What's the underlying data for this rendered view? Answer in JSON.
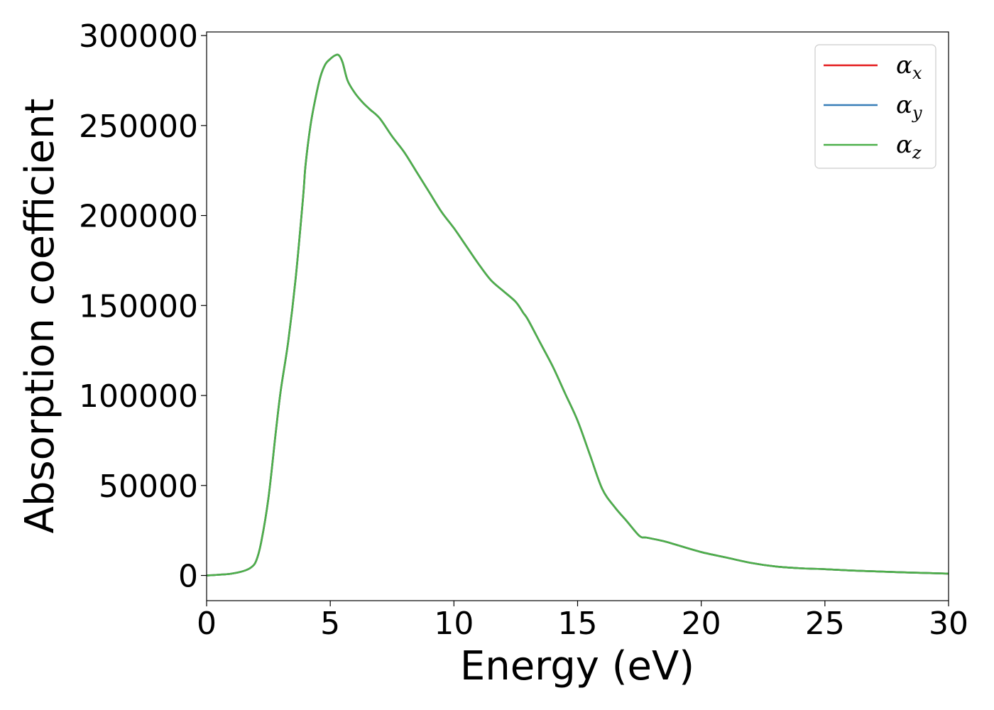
{
  "chart_data": {
    "type": "line",
    "xlabel": "Energy (eV)",
    "ylabel": "Absorption coefficient",
    "xlim": [
      0,
      30
    ],
    "ylim": [
      -14000,
      302000
    ],
    "xticks": [
      0,
      5,
      10,
      15,
      20,
      25,
      30
    ],
    "yticks": [
      0,
      50000,
      100000,
      150000,
      200000,
      250000,
      300000
    ],
    "grid": false,
    "legend_position": "top-right",
    "series": [
      {
        "name": "α_x",
        "color": "#e41a1c",
        "x": [
          0,
          0.5,
          1.0,
          1.5,
          1.8,
          2.0,
          2.2,
          2.5,
          2.8,
          3.0,
          3.3,
          3.6,
          3.9,
          4.0,
          4.2,
          4.4,
          4.6,
          4.8,
          5.0,
          5.2,
          5.35,
          5.5,
          5.7,
          6.0,
          6.3,
          6.6,
          7.0,
          7.5,
          8.0,
          8.5,
          9.0,
          9.5,
          10.0,
          10.5,
          11.0,
          11.5,
          12.0,
          12.5,
          12.8,
          13.0,
          13.5,
          14.0,
          14.5,
          15.0,
          15.5,
          16.0,
          16.5,
          17.0,
          17.5,
          17.8,
          18.5,
          19.0,
          20.0,
          21.0,
          22.0,
          23.0,
          24.0,
          25.0,
          26.0,
          27.0,
          28.0,
          29.0,
          30.0
        ],
        "y": [
          0,
          400,
          1000,
          2500,
          4500,
          8000,
          18000,
          43000,
          80000,
          103000,
          130000,
          165000,
          210000,
          228000,
          250000,
          265000,
          277000,
          284000,
          287000,
          289000,
          289000,
          285000,
          275000,
          268000,
          263000,
          259000,
          254000,
          244000,
          235000,
          224000,
          213000,
          202000,
          193000,
          183000,
          173000,
          164000,
          158000,
          152000,
          146000,
          142000,
          129000,
          116000,
          101000,
          86000,
          67000,
          48000,
          38000,
          30000,
          22000,
          21000,
          19000,
          17000,
          13000,
          10000,
          7000,
          5000,
          4000,
          3500,
          2800,
          2300,
          1800,
          1400,
          1000
        ]
      },
      {
        "name": "α_y",
        "color": "#377eb8",
        "x": [
          0,
          0.5,
          1.0,
          1.5,
          1.8,
          2.0,
          2.2,
          2.5,
          2.8,
          3.0,
          3.3,
          3.6,
          3.9,
          4.0,
          4.2,
          4.4,
          4.6,
          4.8,
          5.0,
          5.2,
          5.35,
          5.5,
          5.7,
          6.0,
          6.3,
          6.6,
          7.0,
          7.5,
          8.0,
          8.5,
          9.0,
          9.5,
          10.0,
          10.5,
          11.0,
          11.5,
          12.0,
          12.5,
          12.8,
          13.0,
          13.5,
          14.0,
          14.5,
          15.0,
          15.5,
          16.0,
          16.5,
          17.0,
          17.5,
          17.8,
          18.5,
          19.0,
          20.0,
          21.0,
          22.0,
          23.0,
          24.0,
          25.0,
          26.0,
          27.0,
          28.0,
          29.0,
          30.0
        ],
        "y": [
          0,
          400,
          1000,
          2500,
          4500,
          8000,
          18000,
          43000,
          80000,
          103000,
          130000,
          165000,
          210000,
          228000,
          250000,
          265000,
          277000,
          284000,
          287000,
          289000,
          289000,
          285000,
          275000,
          268000,
          263000,
          259000,
          254000,
          244000,
          235000,
          224000,
          213000,
          202000,
          193000,
          183000,
          173000,
          164000,
          158000,
          152000,
          146000,
          142000,
          129000,
          116000,
          101000,
          86000,
          67000,
          48000,
          38000,
          30000,
          22000,
          21000,
          19000,
          17000,
          13000,
          10000,
          7000,
          5000,
          4000,
          3500,
          2800,
          2300,
          1800,
          1400,
          1000
        ]
      },
      {
        "name": "α_z",
        "color": "#4daf4a",
        "x": [
          0,
          0.5,
          1.0,
          1.5,
          1.8,
          2.0,
          2.2,
          2.5,
          2.8,
          3.0,
          3.3,
          3.6,
          3.9,
          4.0,
          4.2,
          4.4,
          4.6,
          4.8,
          5.0,
          5.2,
          5.35,
          5.5,
          5.7,
          6.0,
          6.3,
          6.6,
          7.0,
          7.5,
          8.0,
          8.5,
          9.0,
          9.5,
          10.0,
          10.5,
          11.0,
          11.5,
          12.0,
          12.5,
          12.8,
          13.0,
          13.5,
          14.0,
          14.5,
          15.0,
          15.5,
          16.0,
          16.5,
          17.0,
          17.5,
          17.8,
          18.5,
          19.0,
          20.0,
          21.0,
          22.0,
          23.0,
          24.0,
          25.0,
          26.0,
          27.0,
          28.0,
          29.0,
          30.0
        ],
        "y": [
          0,
          400,
          1000,
          2500,
          4500,
          8000,
          18000,
          43000,
          80000,
          103000,
          130000,
          165000,
          210000,
          228000,
          250000,
          265000,
          277000,
          284000,
          287000,
          289000,
          289000,
          285000,
          275000,
          268000,
          263000,
          259000,
          254000,
          244000,
          235000,
          224000,
          213000,
          202000,
          193000,
          183000,
          173000,
          164000,
          158000,
          152000,
          146000,
          142000,
          129000,
          116000,
          101000,
          86000,
          67000,
          48000,
          38000,
          30000,
          22000,
          21000,
          19000,
          17000,
          13000,
          10000,
          7000,
          5000,
          4000,
          3500,
          2800,
          2300,
          1800,
          1400,
          1000
        ]
      }
    ],
    "legend": [
      {
        "symbol": "α",
        "sub": "x"
      },
      {
        "symbol": "α",
        "sub": "y"
      },
      {
        "symbol": "α",
        "sub": "z"
      }
    ]
  }
}
